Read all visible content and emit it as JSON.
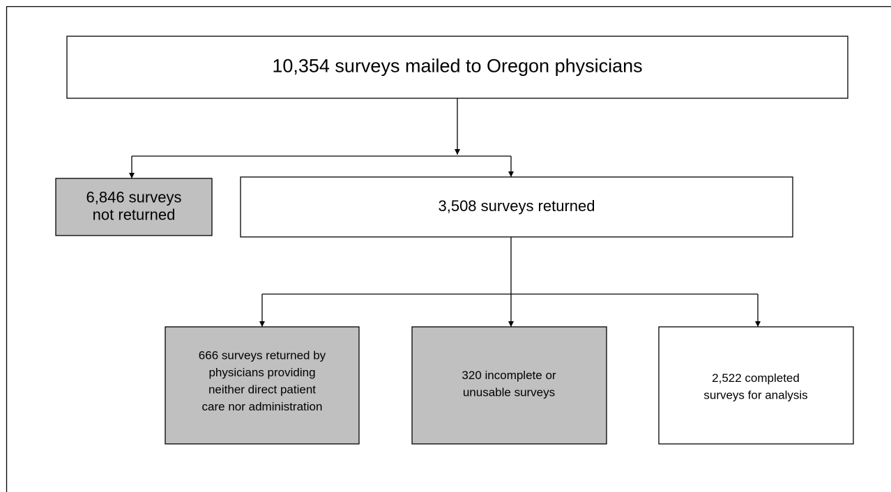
{
  "nodes": [
    {
      "lines": [
        "10,354 surveys mailed to Oregon physicians"
      ]
    },
    {
      "lines": [
        "6,846 surveys",
        "not returned"
      ]
    },
    {
      "lines": [
        "3,508 surveys returned"
      ]
    },
    {
      "lines": [
        "666 surveys returned by",
        "physicians providing",
        "neither direct patient",
        "care nor administration"
      ]
    },
    {
      "lines": [
        "320 incomplete or",
        "unusable surveys"
      ]
    },
    {
      "lines": [
        "2,522 completed",
        "surveys for analysis"
      ]
    }
  ]
}
